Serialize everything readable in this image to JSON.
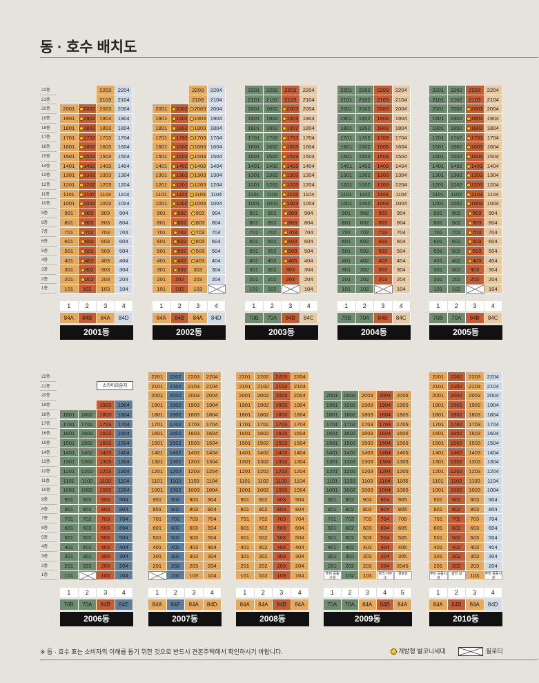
{
  "title": "동 · 호수 배치도",
  "colors": {
    "o": "#e8a95b",
    "r": "#c65c32",
    "b": "#5f7e9c",
    "g": "#6e8c6f",
    "lb": "#cfdbe8",
    "lo": "#e9c9a2",
    "lg": "#c8d5c3",
    "dg": "#8a9b8a"
  },
  "floors_top": [
    "22층",
    "21층",
    "20층",
    "19층",
    "18층",
    "17층",
    "16층",
    "15층",
    "14층",
    "13층",
    "12층",
    "11층",
    "10층",
    "9층",
    "8층",
    "7층",
    "6층",
    "5층",
    "4층",
    "3층",
    "2층",
    "1층"
  ],
  "floors_bottom": [
    "22층",
    "21층",
    "20층",
    "19층",
    "18층",
    "17층",
    "16층",
    "15층",
    "14층",
    "13층",
    "12층",
    "11층",
    "10층",
    "9층",
    "8층",
    "7층",
    "6층",
    "5층",
    "4층",
    "3층",
    "2층",
    "1층"
  ],
  "buildings": [
    {
      "id": "2001",
      "label": "2001동",
      "x": 87,
      "row": 0,
      "lines": [
        "1",
        "2",
        "3",
        "4"
      ],
      "types": [
        "84A",
        "84B",
        "84A",
        "84D"
      ],
      "typeColors": [
        "o",
        "r",
        "o",
        "lb"
      ],
      "colColors": [
        "o",
        "r",
        "o",
        "lb"
      ],
      "maxFloors": [
        20,
        20,
        22,
        22
      ],
      "dots": [
        1
      ],
      "pilotis": [],
      "dotFromFloor": [
        2
      ]
    },
    {
      "id": "2002",
      "label": "2002동",
      "x": 221,
      "row": 0,
      "lines": [
        "1",
        "2",
        "3",
        "4"
      ],
      "types": [
        "84A",
        "84B",
        "84A",
        "84D"
      ],
      "typeColors": [
        "o",
        "r",
        "o",
        "lb"
      ],
      "colColors": [
        "o",
        "r",
        "o",
        "lb"
      ],
      "maxFloors": [
        20,
        20,
        22,
        22
      ],
      "dots": [
        1,
        2
      ],
      "pilotis": [
        [
          3,
          1
        ]
      ],
      "dotFromFloor": [
        3,
        4
      ]
    },
    {
      "id": "2003",
      "label": "2003동",
      "x": 355,
      "row": 0,
      "lines": [
        "1",
        "2",
        "3",
        "4"
      ],
      "types": [
        "70B",
        "70A",
        "84B",
        "84C"
      ],
      "typeColors": [
        "g",
        "g",
        "r",
        "lo"
      ],
      "colColors": [
        "g",
        "g",
        "r",
        "lo"
      ],
      "maxFloors": [
        22,
        22,
        22,
        22
      ],
      "dots": [
        2
      ],
      "pilotis": [
        [
          2,
          1
        ]
      ],
      "dotFromFloor": [
        4
      ]
    },
    {
      "id": "2004",
      "label": "2004동",
      "x": 489,
      "row": 0,
      "lines": [
        "1",
        "2",
        "3",
        "4"
      ],
      "types": [
        "70B",
        "70A",
        "84B",
        "84C"
      ],
      "typeColors": [
        "g",
        "g",
        "r",
        "lo"
      ],
      "colColors": [
        "g",
        "g",
        "r",
        "lo"
      ],
      "maxFloors": [
        22,
        22,
        22,
        22
      ],
      "dots": [],
      "pilotis": [
        [
          2,
          1
        ]
      ],
      "dotFromFloor": []
    },
    {
      "id": "2005",
      "label": "2005동",
      "x": 622,
      "row": 0,
      "lines": [
        "1",
        "2",
        "3",
        "4"
      ],
      "types": [
        "70B",
        "70A",
        "84B",
        "84C"
      ],
      "typeColors": [
        "g",
        "g",
        "r",
        "lo"
      ],
      "colColors": [
        "g",
        "g",
        "r",
        "lo"
      ],
      "maxFloors": [
        22,
        22,
        22,
        22
      ],
      "dots": [
        2
      ],
      "pilotis": [
        [
          2,
          1
        ]
      ],
      "dotFromFloor": [
        4
      ]
    },
    {
      "id": "2006",
      "label": "2006동",
      "x": 87,
      "row": 1,
      "lines": [
        "1",
        "2",
        "3",
        "4"
      ],
      "types": [
        "70B",
        "70A",
        "84B",
        "84E"
      ],
      "typeColors": [
        "g",
        "g",
        "r",
        "b"
      ],
      "colColors": [
        "g",
        "g",
        "r",
        "b"
      ],
      "maxFloors": [
        18,
        18,
        19,
        19
      ],
      "dots": [],
      "pilotis": [
        [
          1,
          1
        ]
      ],
      "dotFromFloor": [],
      "sky": "스카이라운지"
    },
    {
      "id": "2007",
      "label": "2007동",
      "x": 215,
      "row": 1,
      "lines": [
        "1",
        "2",
        "3",
        "4"
      ],
      "types": [
        "84A",
        "84F",
        "84A",
        "84D"
      ],
      "typeColors": [
        "o",
        "b",
        "o",
        "o"
      ],
      "colColors": [
        "o",
        "b",
        "o",
        "o"
      ],
      "maxFloors": [
        22,
        22,
        22,
        22
      ],
      "dots": [],
      "pilotis": [
        [
          0,
          1
        ]
      ],
      "dotFromFloor": []
    },
    {
      "id": "2008",
      "label": "2008동",
      "x": 342,
      "row": 1,
      "lines": [
        "1",
        "2",
        "3",
        "4"
      ],
      "types": [
        "84A",
        "84A",
        "84B",
        "84A"
      ],
      "typeColors": [
        "o",
        "o",
        "r",
        "o"
      ],
      "colColors": [
        "o",
        "o",
        "r",
        "o"
      ],
      "maxFloors": [
        22,
        22,
        22,
        22
      ],
      "dots": [],
      "pilotis": [],
      "dotFromFloor": []
    },
    {
      "id": "2009",
      "label": "2009동",
      "x": 469,
      "row": 1,
      "lines": [
        "1",
        "2",
        "3",
        "4",
        "5"
      ],
      "types": [
        "70A",
        "70A",
        "84A",
        "84B",
        "84A"
      ],
      "typeColors": [
        "g",
        "g",
        "o",
        "r",
        "o"
      ],
      "colColors": [
        "g",
        "g",
        "o",
        "r",
        "o"
      ],
      "maxFloors": [
        20,
        20,
        20,
        20,
        20
      ],
      "dots": [],
      "pilotis": [],
      "dotFromFloor": [],
      "notes": [
        {
          "col": 0,
          "text": "주민 공동시설"
        },
        {
          "col": 3,
          "text": "관리 사무소"
        },
        {
          "col": 4,
          "text": "경로당"
        }
      ]
    },
    {
      "id": "2010",
      "label": "2010동",
      "x": 622,
      "row": 1,
      "lines": [
        "1",
        "2",
        "3",
        "4"
      ],
      "types": [
        "84A",
        "84B",
        "84A",
        "84D"
      ],
      "typeColors": [
        "o",
        "r",
        "o",
        "lb"
      ],
      "colColors": [
        "o",
        "r",
        "o",
        "lb"
      ],
      "maxFloors": [
        22,
        22,
        22,
        22
      ],
      "dots": [],
      "pilotis": [],
      "dotFromFloor": [],
      "notes": [
        {
          "col": 0,
          "text": "주민 공동시설"
        },
        {
          "col": 1,
          "text": "관리 실"
        },
        {
          "col": 3,
          "text": "주민 공동시설"
        }
      ]
    }
  ],
  "unit_suffix_2009_2": "2045",
  "footnote": "※ 동 · 호수 표는 소비자의 이해를 돕기 위한 것으로 반드시 견본주택에서 확인하시기 바랍니다.",
  "legend": {
    "balcony": "개방형 발코니세대",
    "pilotis": "필로티"
  }
}
